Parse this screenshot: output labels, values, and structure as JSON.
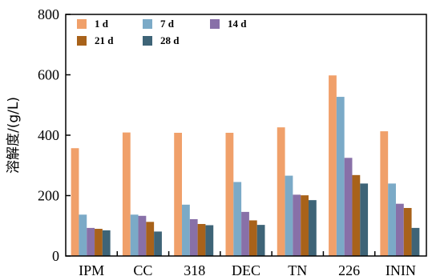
{
  "chart_data": {
    "type": "bar",
    "ylabel": "溶解度/(g/L)",
    "xlabel": "",
    "ylim": [
      0,
      800
    ],
    "yticks": [
      0,
      200,
      400,
      600,
      800
    ],
    "categories": [
      "IPM",
      "CC",
      "318",
      "DEC",
      "TN",
      "226",
      "ININ"
    ],
    "series": [
      {
        "name": "1 d",
        "color": "#F0A06A",
        "values": [
          357,
          409,
          408,
          408,
          426,
          598,
          413
        ]
      },
      {
        "name": "7 d",
        "color": "#7BAAC7",
        "values": [
          137,
          137,
          170,
          245,
          266,
          527,
          240
        ]
      },
      {
        "name": "14 d",
        "color": "#8870A8",
        "values": [
          93,
          133,
          122,
          146,
          203,
          325,
          173
        ]
      },
      {
        "name": "21 d",
        "color": "#A8621A",
        "values": [
          90,
          113,
          106,
          118,
          201,
          268,
          159
        ]
      },
      {
        "name": "28 d",
        "color": "#3E6477",
        "values": [
          85,
          81,
          102,
          103,
          185,
          240,
          93
        ]
      }
    ],
    "legend_placement": "top-left",
    "grid": false
  }
}
